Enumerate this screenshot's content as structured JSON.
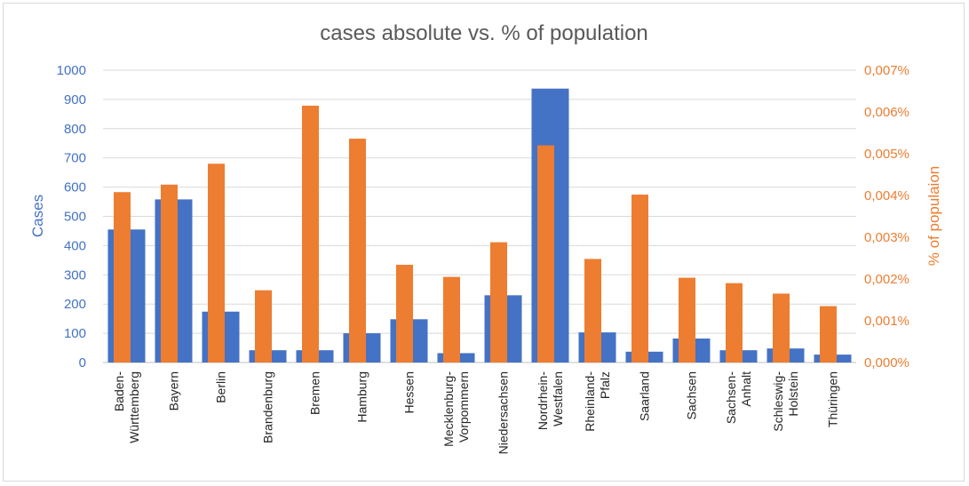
{
  "chart_data": {
    "type": "bar",
    "title": "cases absolute vs. % of population",
    "ylabel": "Cases",
    "y2label": "% of populaion",
    "ylim": [
      0,
      1000
    ],
    "y2lim": [
      0,
      0.007
    ],
    "y_ticks": [
      "0",
      "100",
      "200",
      "300",
      "400",
      "500",
      "600",
      "700",
      "800",
      "900",
      "1000"
    ],
    "y2_ticks": [
      "0,000%",
      "0,001%",
      "0,002%",
      "0,003%",
      "0,004%",
      "0,005%",
      "0,006%",
      "0,007%"
    ],
    "grid": true,
    "categories": [
      [
        "Baden-",
        "Württemberg"
      ],
      [
        "Bayern"
      ],
      [
        "Berlin"
      ],
      [
        "Brandenburg"
      ],
      [
        "Bremen"
      ],
      [
        "Hamburg"
      ],
      [
        "Hessen"
      ],
      [
        "Mecklenburg-",
        "Vorpommern"
      ],
      [
        "Niedersachsen"
      ],
      [
        "Nordrhein-",
        "Westfalen"
      ],
      [
        "Rheinland-",
        "Pfalz"
      ],
      [
        "Saarland"
      ],
      [
        "Sachsen"
      ],
      [
        "Sachsen-",
        "Anhalt"
      ],
      [
        "Schleswig-",
        "Holstein"
      ],
      [
        "Thüringen"
      ]
    ],
    "series": [
      {
        "axis": "left",
        "color": "#4472C4",
        "values": [
          455,
          558,
          174,
          42,
          42,
          100,
          148,
          32,
          230,
          937,
          103,
          37,
          82,
          42,
          48,
          27
        ]
      },
      {
        "axis": "right",
        "color": "#ED7D31",
        "values": [
          0.00408,
          0.00426,
          0.00476,
          0.00173,
          0.00615,
          0.00536,
          0.00234,
          0.00205,
          0.00288,
          0.0052,
          0.00248,
          0.00402,
          0.00203,
          0.0019,
          0.00165,
          0.00135
        ]
      }
    ]
  }
}
